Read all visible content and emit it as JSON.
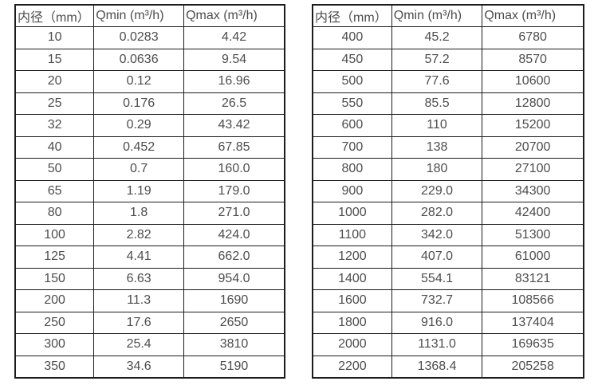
{
  "page": {
    "background": "#ffffff",
    "border_color": "#1c1c1c",
    "text_color": "#4d4d4d"
  },
  "tables": [
    {
      "name": "flow-range-table-dn10-dn350",
      "headers": [
        "内径（mm）",
        "Qmin (m³/h)",
        "Qmax (m³/h)"
      ],
      "rows": [
        [
          "10",
          "0.0283",
          "4.42"
        ],
        [
          "15",
          "0.0636",
          "9.54"
        ],
        [
          "20",
          "0.12",
          "16.96"
        ],
        [
          "25",
          "0.176",
          "26.5"
        ],
        [
          "32",
          "0.29",
          "43.42"
        ],
        [
          "40",
          "0.452",
          "67.85"
        ],
        [
          "50",
          "0.7",
          "160.0"
        ],
        [
          "65",
          "1.19",
          "179.0"
        ],
        [
          "80",
          "1.8",
          "271.0"
        ],
        [
          "100",
          "2.82",
          "424.0"
        ],
        [
          "125",
          "4.41",
          "662.0"
        ],
        [
          "150",
          "6.63",
          "954.0"
        ],
        [
          "200",
          "11.3",
          "1690"
        ],
        [
          "250",
          "17.6",
          "2650"
        ],
        [
          "300",
          "25.4",
          "3810"
        ],
        [
          "350",
          "34.6",
          "5190"
        ]
      ]
    },
    {
      "name": "flow-range-table-dn400-dn2200",
      "headers": [
        "内径（mm）",
        "Qmin (m³/h)",
        "Qmax (m³/h)"
      ],
      "rows": [
        [
          "400",
          "45.2",
          "6780"
        ],
        [
          "450",
          "57.2",
          "8570"
        ],
        [
          "500",
          "77.6",
          "10600"
        ],
        [
          "550",
          "85.5",
          "12800"
        ],
        [
          "600",
          "110",
          "15200"
        ],
        [
          "700",
          "138",
          "20700"
        ],
        [
          "800",
          "180",
          "27100"
        ],
        [
          "900",
          "229.0",
          "34300"
        ],
        [
          "1000",
          "282.0",
          "42400"
        ],
        [
          "1100",
          "342.0",
          "51300"
        ],
        [
          "1200",
          "407.0",
          "61000"
        ],
        [
          "1400",
          "554.1",
          "83121"
        ],
        [
          "1600",
          "732.7",
          "108566"
        ],
        [
          "1800",
          "916.0",
          "137404"
        ],
        [
          "2000",
          "1131.0",
          "169635"
        ],
        [
          "2200",
          "1368.4",
          "205258"
        ]
      ]
    }
  ]
}
